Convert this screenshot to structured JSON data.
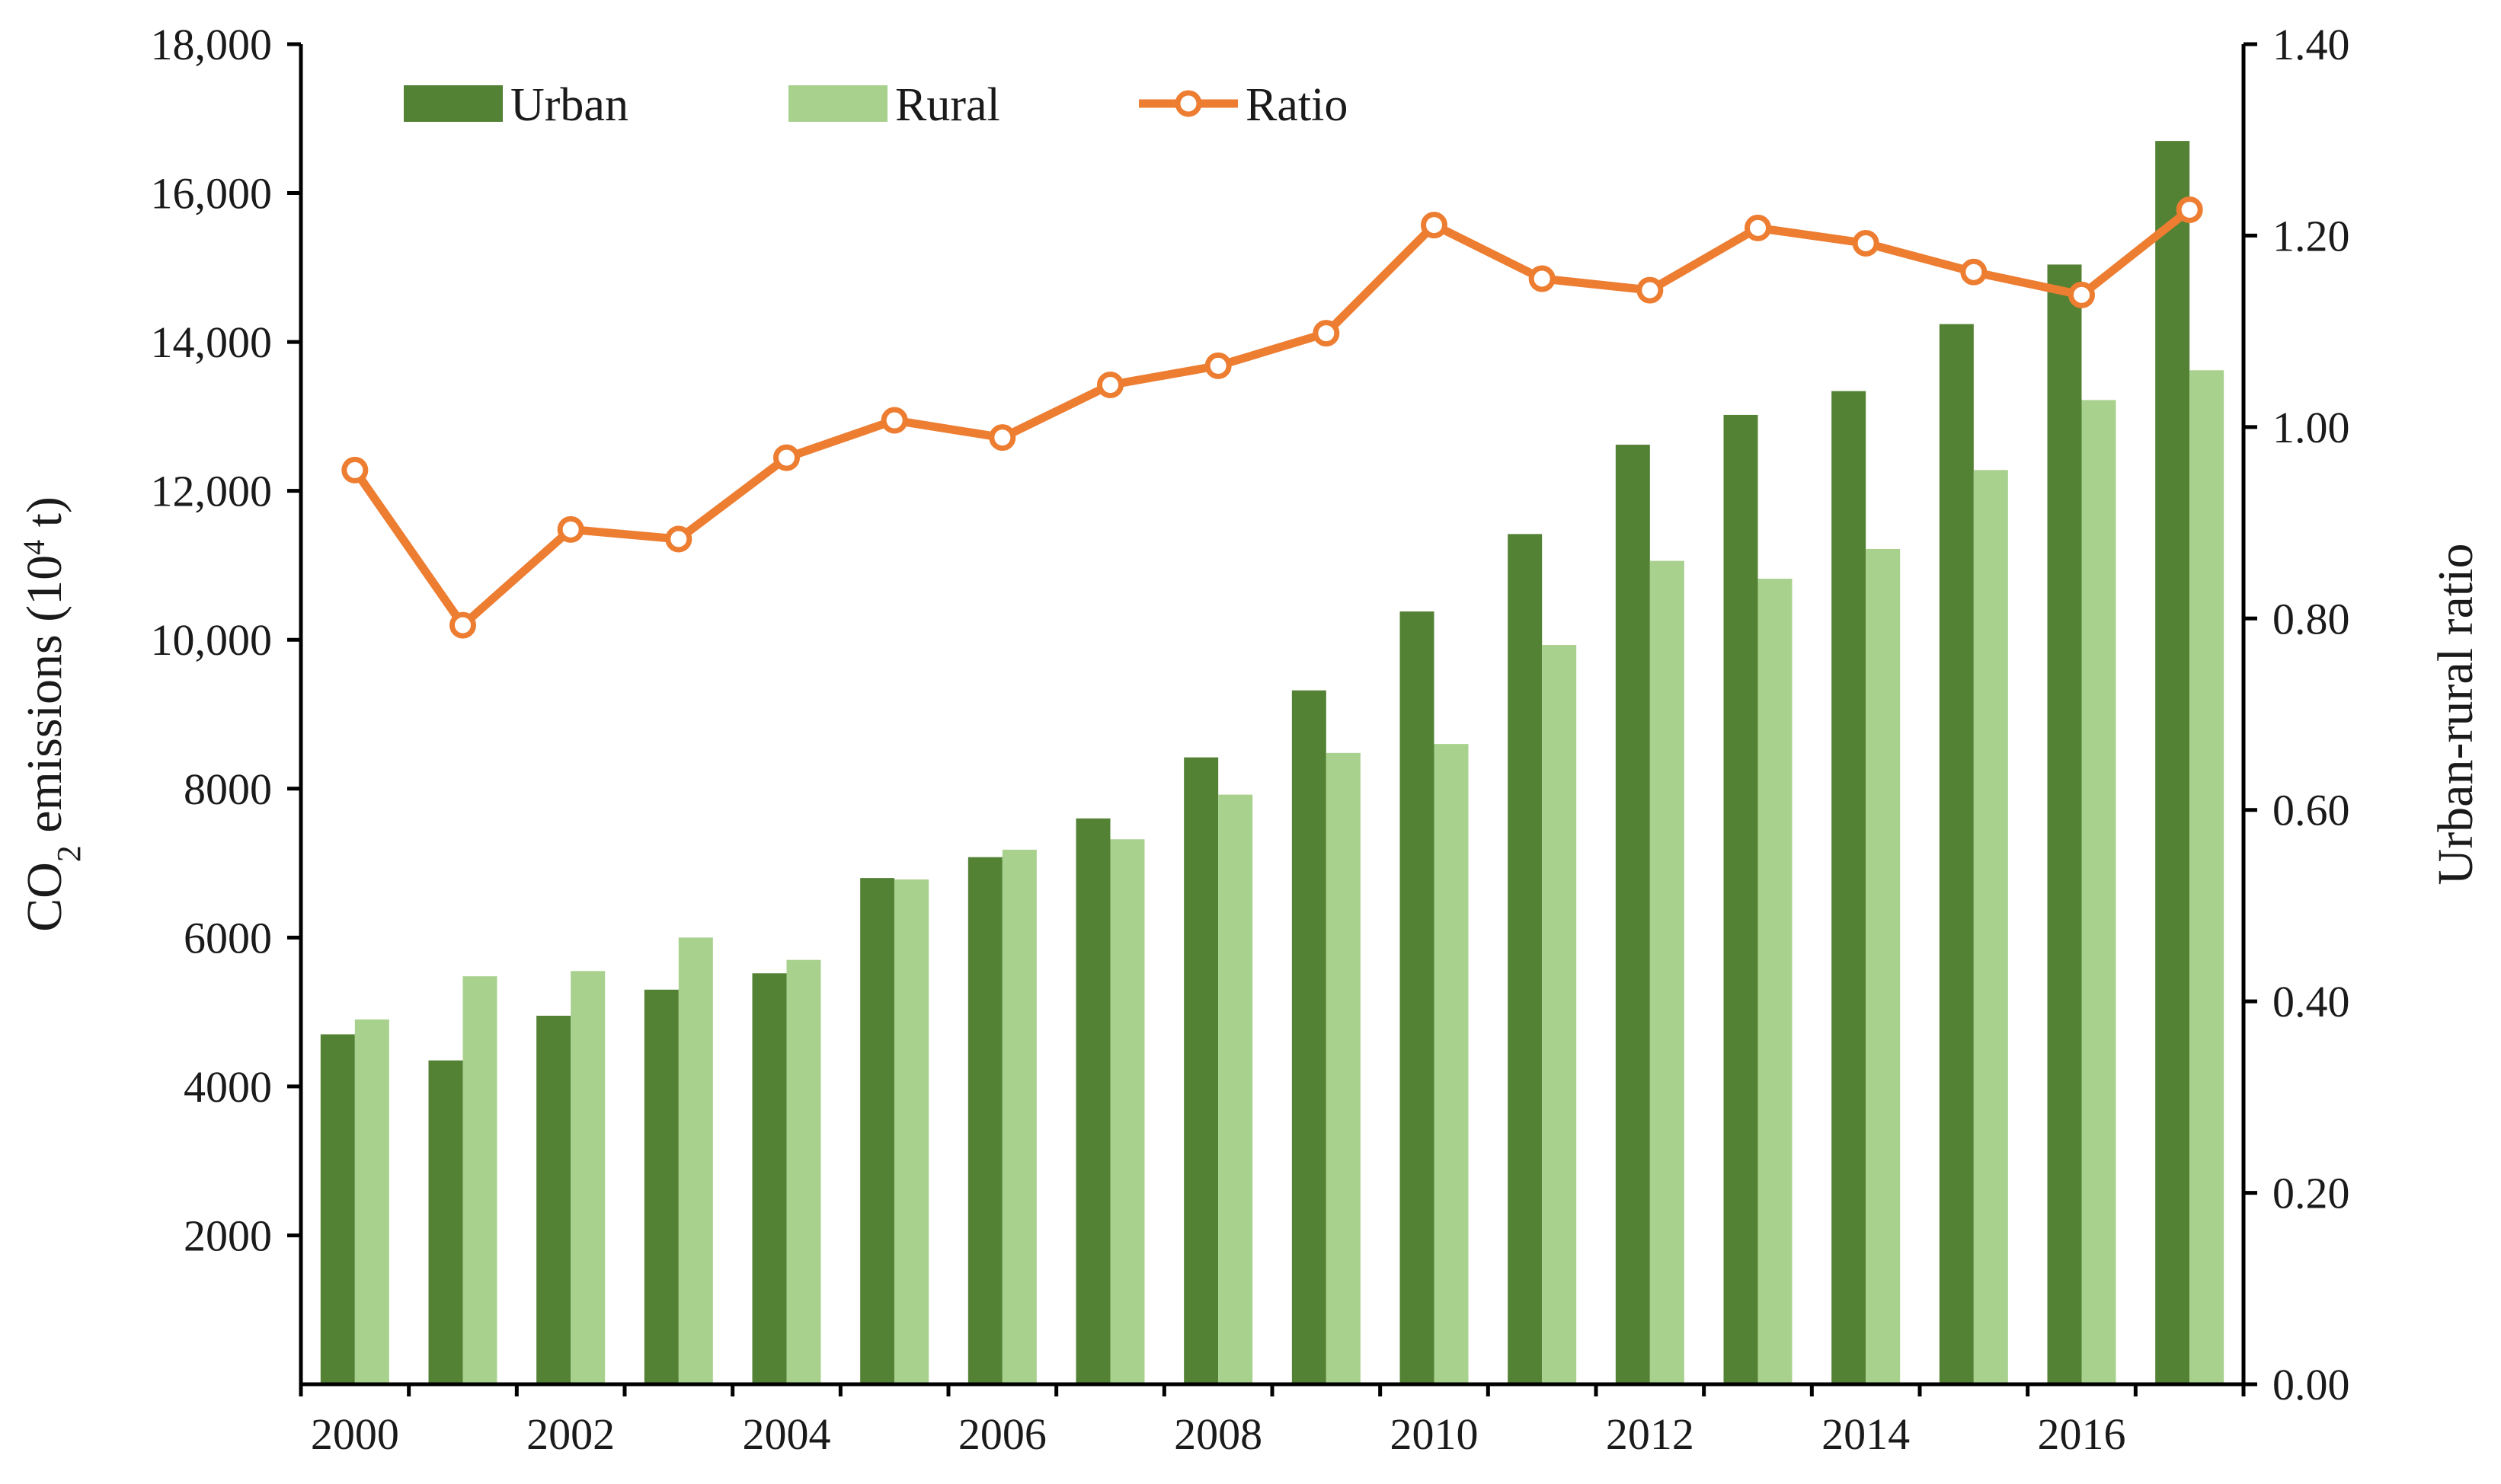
{
  "chart_data": {
    "type": "bar",
    "categories": [
      "2000",
      "2001",
      "2002",
      "2003",
      "2004",
      "2005",
      "2006",
      "2007",
      "2008",
      "2009",
      "2010",
      "2011",
      "2012",
      "2013",
      "2014",
      "2015",
      "2016",
      "2017"
    ],
    "x_tick_labels": [
      "2000",
      "2002",
      "2004",
      "2006",
      "2008",
      "2010",
      "2012",
      "2014",
      "2016"
    ],
    "series": [
      {
        "name": "Urban",
        "kind": "bar",
        "axis": "left",
        "color": "#548235",
        "values": [
          4700,
          4350,
          4950,
          5300,
          5520,
          6800,
          7080,
          7600,
          8420,
          9320,
          10380,
          11420,
          12620,
          13020,
          13340,
          14240,
          15040,
          16700
        ]
      },
      {
        "name": "Rural",
        "kind": "bar",
        "axis": "left",
        "color": "#A9D18E",
        "values": [
          4900,
          5480,
          5550,
          6000,
          5700,
          6780,
          7180,
          7320,
          7920,
          8480,
          8600,
          9930,
          11060,
          10820,
          11220,
          12280,
          13220,
          13620
        ]
      },
      {
        "name": "Ratio",
        "kind": "line",
        "axis": "right",
        "color": "#ED7D31",
        "values": [
          0.955,
          0.793,
          0.893,
          0.883,
          0.968,
          1.007,
          0.989,
          1.044,
          1.064,
          1.098,
          1.211,
          1.155,
          1.143,
          1.208,
          1.192,
          1.162,
          1.138,
          1.227
        ]
      }
    ],
    "y_left": {
      "label_main": "CO",
      "label_sub": "2",
      "label_mid": " emissions (10",
      "label_sup": "4",
      "label_end": " t)",
      "min": 2000,
      "max": 18000,
      "ticks": [
        2000,
        4000,
        6000,
        8000,
        10000,
        12000,
        14000,
        16000,
        18000
      ],
      "tick_labels": [
        "2000",
        "4000",
        "6000",
        "8000",
        "10,000",
        "12,000",
        "14,000",
        "16,000",
        "18,000"
      ]
    },
    "y_right": {
      "label": "Urban-rural ratio",
      "min": 0,
      "max": 1.4,
      "ticks": [
        0,
        0.2,
        0.4,
        0.6,
        0.8,
        1.0,
        1.2,
        1.4
      ],
      "tick_labels": [
        "0.00",
        "0.20",
        "0.40",
        "0.60",
        "0.80",
        "1.00",
        "1.20",
        "1.40"
      ]
    },
    "legend": {
      "placement": "top",
      "items": [
        {
          "name": "Urban",
          "symbol": "bar",
          "color": "#548235"
        },
        {
          "name": "Rural",
          "symbol": "bar",
          "color": "#A9D18E"
        },
        {
          "name": "Ratio",
          "symbol": "line-marker",
          "color": "#ED7D31"
        }
      ]
    },
    "grid": false
  }
}
